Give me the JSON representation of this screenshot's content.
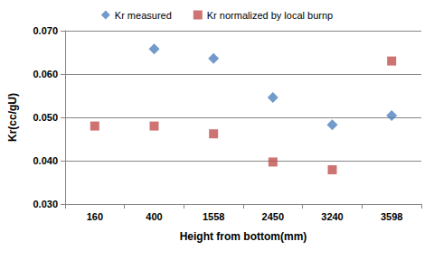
{
  "chart_data": {
    "type": "scatter",
    "x_label": "Height from bottom(mm)",
    "y_label": "Kr(cc/gU)",
    "categories": [
      "160",
      "400",
      "1558",
      "2450",
      "3240",
      "3598"
    ],
    "series": [
      {
        "name": "Kr measured",
        "color": "#4f81bd",
        "marker": "diamond",
        "values": [
          null,
          0.0658,
          0.0636,
          0.0546,
          0.0483,
          0.0504
        ]
      },
      {
        "name": "Kr normalized by local burnp",
        "color": "#c0504d",
        "marker": "square",
        "values": [
          0.048,
          0.048,
          0.0462,
          0.0397,
          0.0379,
          0.063
        ]
      }
    ],
    "ylim": [
      0.03,
      0.07
    ],
    "yticks": [
      {
        "value": 0.03,
        "label": "0.030"
      },
      {
        "value": 0.04,
        "label": "0.040"
      },
      {
        "value": 0.05,
        "label": "0.050"
      },
      {
        "value": 0.06,
        "label": "0.060"
      },
      {
        "value": 0.07,
        "label": "0.070"
      }
    ],
    "grid": true,
    "legend": "top"
  }
}
